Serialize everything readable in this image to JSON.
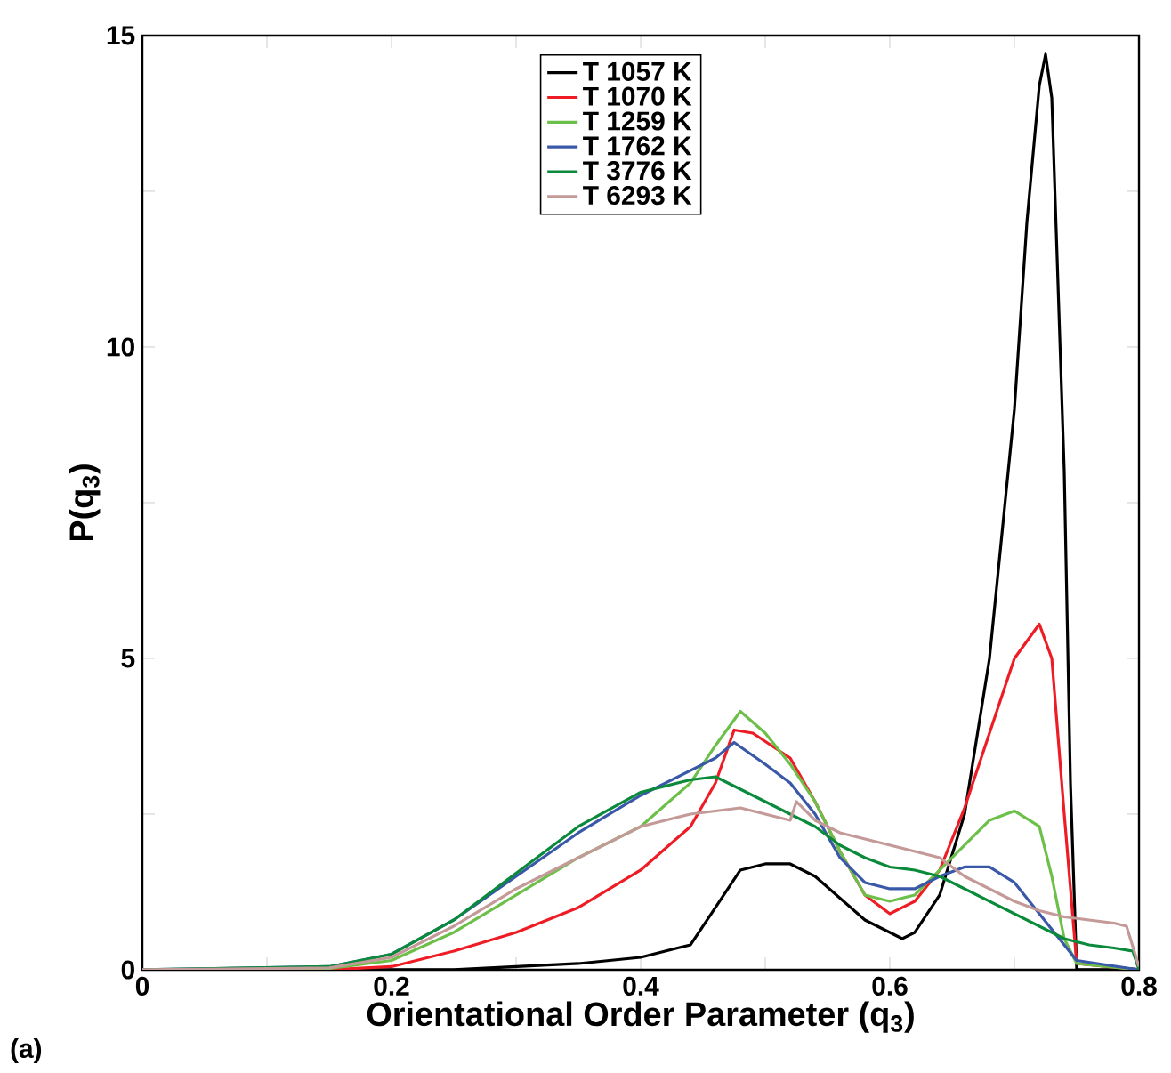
{
  "chart_data": {
    "type": "line",
    "xlabel": "Orientational Order Parameter (q$_{3}$)",
    "ylabel": "P(q$_{3}$)",
    "annotations": [
      "(a)"
    ],
    "xlim": [
      0,
      0.8
    ],
    "ylim": [
      0,
      15
    ],
    "xticks": [
      0,
      {
        "value": 0.1,
        "label": null
      },
      0.2,
      {
        "value": 0.3,
        "label": null
      },
      0.4,
      {
        "value": 0.5,
        "label": null
      },
      0.6,
      {
        "value": 0.7,
        "label": null
      },
      0.8
    ],
    "yticks": [
      0,
      {
        "value": 2.5,
        "label": null
      },
      5,
      {
        "value": 7.5,
        "label": null
      },
      10,
      {
        "value": 12.5,
        "label": null
      },
      15
    ],
    "legend": "top",
    "grid": false,
    "marker": "none",
    "line_style": "solid",
    "series": [
      {
        "name": "T 1057 K",
        "color": "#000000",
        "x": [
          0,
          0.25,
          0.3,
          0.35,
          0.4,
          0.44,
          0.46,
          0.48,
          0.5,
          0.52,
          0.54,
          0.56,
          0.58,
          0.6,
          0.61,
          0.62,
          0.64,
          0.66,
          0.68,
          0.7,
          0.71,
          0.72,
          0.725,
          0.73,
          0.74,
          0.745,
          0.75,
          0.8
        ],
        "values": [
          0,
          0,
          0.05,
          0.1,
          0.2,
          0.4,
          1.0,
          1.6,
          1.7,
          1.7,
          1.5,
          1.15,
          0.8,
          0.6,
          0.5,
          0.6,
          1.2,
          2.5,
          5,
          9,
          12,
          14.2,
          14.7,
          14,
          8,
          3,
          0,
          0
        ]
      },
      {
        "name": "T 1070 K",
        "color": "#ee1c24",
        "x": [
          0,
          0.15,
          0.2,
          0.25,
          0.3,
          0.35,
          0.4,
          0.44,
          0.46,
          0.475,
          0.49,
          0.52,
          0.54,
          0.56,
          0.58,
          0.6,
          0.62,
          0.64,
          0.66,
          0.68,
          0.7,
          0.72,
          0.73,
          0.74,
          0.75,
          0.8
        ],
        "values": [
          0,
          0,
          0.05,
          0.3,
          0.6,
          1.0,
          1.6,
          2.3,
          3.0,
          3.85,
          3.8,
          3.4,
          2.7,
          1.9,
          1.2,
          0.9,
          1.1,
          1.6,
          2.6,
          3.8,
          5.0,
          5.55,
          5.0,
          2.5,
          0.1,
          0
        ]
      },
      {
        "name": "T 1259 K",
        "color": "#6cc04a",
        "x": [
          0,
          0.15,
          0.2,
          0.25,
          0.3,
          0.35,
          0.4,
          0.44,
          0.46,
          0.48,
          0.5,
          0.52,
          0.54,
          0.56,
          0.58,
          0.6,
          0.62,
          0.64,
          0.66,
          0.68,
          0.7,
          0.72,
          0.73,
          0.74,
          0.75,
          0.8
        ],
        "values": [
          0,
          0.02,
          0.15,
          0.6,
          1.2,
          1.8,
          2.3,
          3.0,
          3.6,
          4.15,
          3.8,
          3.3,
          2.7,
          1.9,
          1.2,
          1.1,
          1.2,
          1.6,
          2.0,
          2.4,
          2.55,
          2.3,
          1.5,
          0.5,
          0.1,
          0
        ]
      },
      {
        "name": "T 1762 K",
        "color": "#3a58a8",
        "x": [
          0,
          0.15,
          0.2,
          0.25,
          0.3,
          0.35,
          0.4,
          0.44,
          0.46,
          0.475,
          0.5,
          0.52,
          0.54,
          0.56,
          0.58,
          0.6,
          0.62,
          0.64,
          0.66,
          0.68,
          0.7,
          0.72,
          0.74,
          0.75,
          0.8
        ],
        "values": [
          0,
          0.05,
          0.25,
          0.8,
          1.5,
          2.2,
          2.8,
          3.2,
          3.4,
          3.65,
          3.3,
          3.0,
          2.5,
          1.8,
          1.4,
          1.3,
          1.3,
          1.5,
          1.65,
          1.65,
          1.4,
          0.9,
          0.4,
          0.15,
          0
        ]
      },
      {
        "name": "T 3776 K",
        "color": "#0a8a3a",
        "x": [
          0,
          0.15,
          0.2,
          0.25,
          0.3,
          0.35,
          0.4,
          0.44,
          0.46,
          0.48,
          0.5,
          0.52,
          0.54,
          0.56,
          0.58,
          0.6,
          0.62,
          0.64,
          0.66,
          0.68,
          0.7,
          0.72,
          0.74,
          0.76,
          0.78,
          0.795,
          0.8
        ],
        "values": [
          0,
          0.05,
          0.25,
          0.8,
          1.55,
          2.3,
          2.85,
          3.05,
          3.1,
          2.9,
          2.7,
          2.5,
          2.3,
          2.0,
          1.8,
          1.65,
          1.6,
          1.5,
          1.3,
          1.1,
          0.9,
          0.7,
          0.5,
          0.4,
          0.35,
          0.3,
          0
        ]
      },
      {
        "name": "T 6293 K",
        "color": "#c49a98",
        "x": [
          0,
          0.15,
          0.2,
          0.25,
          0.3,
          0.35,
          0.4,
          0.44,
          0.48,
          0.5,
          0.52,
          0.525,
          0.54,
          0.56,
          0.6,
          0.64,
          0.66,
          0.68,
          0.7,
          0.72,
          0.74,
          0.76,
          0.78,
          0.79,
          0.8
        ],
        "values": [
          0,
          0.03,
          0.2,
          0.7,
          1.3,
          1.8,
          2.3,
          2.5,
          2.6,
          2.5,
          2.4,
          2.7,
          2.4,
          2.2,
          2.0,
          1.8,
          1.5,
          1.3,
          1.1,
          0.95,
          0.85,
          0.8,
          0.75,
          0.7,
          0.05
        ]
      }
    ]
  }
}
